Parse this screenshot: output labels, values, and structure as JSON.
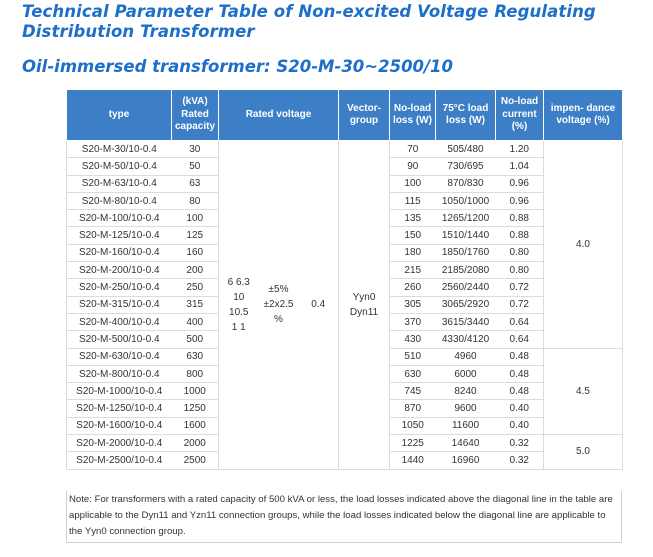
{
  "title": "Technical Parameter Table of Non-excited Voltage Regulating Distribution Transformer",
  "subtitle": "Oil-immersed transformer: S20-M-30~2500/10",
  "table": {
    "headers": {
      "type": "type",
      "capacity": "(kVA) Rated capacity",
      "rated_voltage": "Rated voltage",
      "vector_group": "Vector-group",
      "no_load_loss": "No-load loss (W)",
      "load_loss": "75°C load loss (W)",
      "no_load_current": "No-load current (%)",
      "impedance": "impen- dance voltage (%)"
    },
    "merged": {
      "hv_voltage": "6 6.3 10 10.5 1 1",
      "tapping": "±5% ±2x2.5 %",
      "lv_voltage": "0.4",
      "vector_group": "Yyn0 Dyn11",
      "impedance_a": "4.0",
      "impedance_b": "4.5",
      "impedance_c": "5.0"
    },
    "rows": [
      {
        "type": "S20-M-30/10-0.4",
        "capacity": "30",
        "no_load_loss": "70",
        "load_loss": "505/480",
        "current": "1.20"
      },
      {
        "type": "S20-M-50/10-0.4",
        "capacity": "50",
        "no_load_loss": "90",
        "load_loss": "730/695",
        "current": "1.04"
      },
      {
        "type": "S20-M-63/10-0.4",
        "capacity": "63",
        "no_load_loss": "100",
        "load_loss": "870/830",
        "current": "0.96"
      },
      {
        "type": "S20-M-80/10-0.4",
        "capacity": "80",
        "no_load_loss": "115",
        "load_loss": "1050/1000",
        "current": "0.96"
      },
      {
        "type": "S20-M-100/10-0.4",
        "capacity": "100",
        "no_load_loss": "135",
        "load_loss": "1265/1200",
        "current": "0.88"
      },
      {
        "type": "S20-M-125/10-0.4",
        "capacity": "125",
        "no_load_loss": "150",
        "load_loss": "1510/1440",
        "current": "0.88"
      },
      {
        "type": "S20-M-160/10-0.4",
        "capacity": "160",
        "no_load_loss": "180",
        "load_loss": "1850/1760",
        "current": "0.80"
      },
      {
        "type": "S20-M-200/10-0.4",
        "capacity": "200",
        "no_load_loss": "215",
        "load_loss": "2185/2080",
        "current": "0.80"
      },
      {
        "type": "S20-M-250/10-0.4",
        "capacity": "250",
        "no_load_loss": "260",
        "load_loss": "2560/2440",
        "current": "0.72"
      },
      {
        "type": "S20-M-315/10-0.4",
        "capacity": "315",
        "no_load_loss": "305",
        "load_loss": "3065/2920",
        "current": "0.72"
      },
      {
        "type": "S20-M-400/10-0.4",
        "capacity": "400",
        "no_load_loss": "370",
        "load_loss": "3615/3440",
        "current": "0.64"
      },
      {
        "type": "S20-M-500/10-0.4",
        "capacity": "500",
        "no_load_loss": "430",
        "load_loss": "4330/4120",
        "current": "0.64"
      },
      {
        "type": "S20-M-630/10-0.4",
        "capacity": "630",
        "no_load_loss": "510",
        "load_loss": "4960",
        "current": "0.48"
      },
      {
        "type": "S20-M-800/10-0.4",
        "capacity": "800",
        "no_load_loss": "630",
        "load_loss": "6000",
        "current": "0.48"
      },
      {
        "type": "S20-M-1000/10-0.4",
        "capacity": "1000",
        "no_load_loss": "745",
        "load_loss": "8240",
        "current": "0.48"
      },
      {
        "type": "S20-M-1250/10-0.4",
        "capacity": "1250",
        "no_load_loss": "870",
        "load_loss": "9600",
        "current": "0.40"
      },
      {
        "type": "S20-M-1600/10-0.4",
        "capacity": "1600",
        "no_load_loss": "1050",
        "load_loss": "11600",
        "current": "0.40"
      },
      {
        "type": "S20-M-2000/10-0.4",
        "capacity": "2000",
        "no_load_loss": "1225",
        "load_loss": "14640",
        "current": "0.32"
      },
      {
        "type": "S20-M-2500/10-0.4",
        "capacity": "2500",
        "no_load_loss": "1440",
        "load_loss": "16960",
        "current": "0.32"
      }
    ]
  },
  "note": "Note: For transformers with a rated capacity of 500 kVA or less, the load losses indicated above the diagonal line in the table are applicable to the Dyn11 and Yzn11 connection groups, while the load losses indicated below the diagonal line are applicable to the Yyn0 connection group.",
  "colors": {
    "heading": "#1e6fc8",
    "header_fill": "#3d7fc6"
  }
}
